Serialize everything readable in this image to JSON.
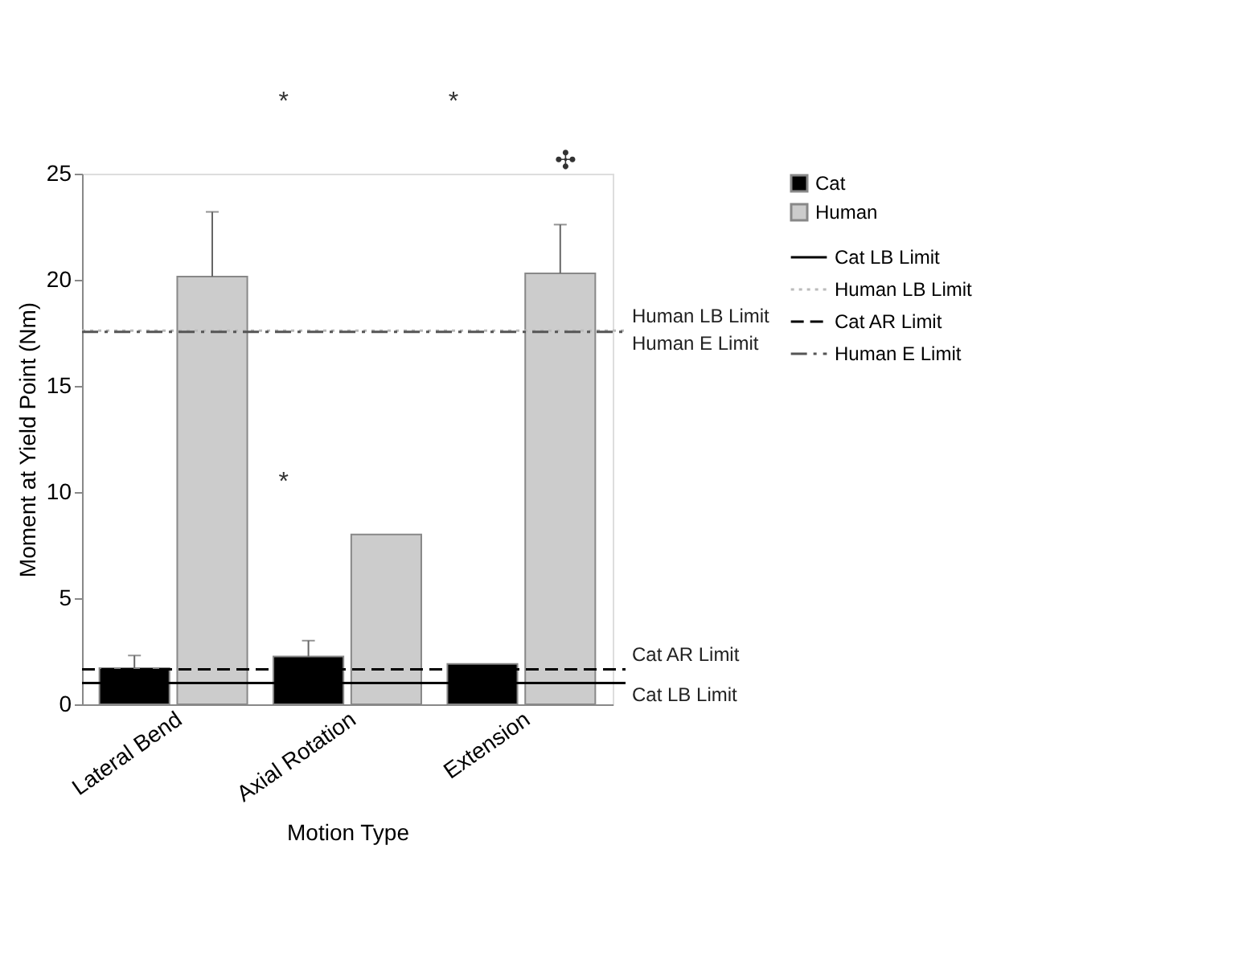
{
  "chart_data": {
    "type": "bar",
    "xlabel": "Motion Type",
    "ylabel": "Moment at Yield Point (Nm)",
    "categories": [
      "Lateral Bend",
      "Axial Rotation",
      "Extension"
    ],
    "series": [
      {
        "name": "Cat",
        "color": "#000000",
        "values": [
          1.7,
          2.25,
          1.9
        ],
        "errors": [
          [
            1.7,
            2.3
          ],
          [
            2.25,
            3.0
          ],
          null
        ]
      },
      {
        "name": "Human",
        "color": "#cccccc",
        "values": [
          20.15,
          8.0,
          20.3
        ],
        "errors": [
          [
            20.15,
            23.2
          ],
          null,
          [
            20.3,
            22.6
          ]
        ]
      }
    ],
    "ylim": [
      0,
      25
    ],
    "yticks": [
      0,
      5,
      10,
      15,
      20,
      25
    ],
    "grid": false,
    "legend": "right",
    "ref_lines": [
      {
        "axis": "y",
        "value": 1.0,
        "label": "Cat LB Limit",
        "color": "#000000",
        "line_style": "solid"
      },
      {
        "axis": "y",
        "value": 17.6,
        "label": "Human LB Limit",
        "color": "#bbbbbb",
        "line_style": "dotted"
      },
      {
        "axis": "y",
        "value": 1.65,
        "label": "Cat AR Limit",
        "color": "#000000",
        "line_style": "dashed"
      },
      {
        "axis": "y",
        "value": 17.55,
        "label": "Human E Limit",
        "color": "#555555",
        "line_style": "dashdot"
      }
    ],
    "annotations": [
      "*",
      "*",
      "✣",
      "*"
    ]
  }
}
